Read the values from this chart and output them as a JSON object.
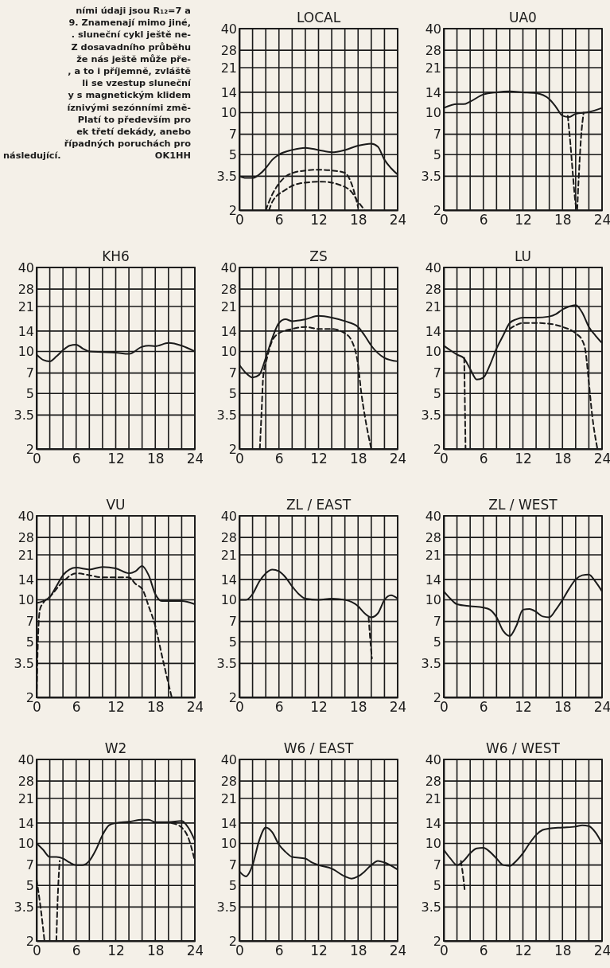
{
  "chart_data": [
    {
      "type": "other",
      "annotations": [
        "ními údaji jsou R₁₂=7 a",
        "9. Znamenají mimo jiné,",
        ". sluneční cykl ještě ne-",
        "Z dosavadního průběhu",
        "že nás ještě může pře-",
        ", a to i příjemně, zvláště",
        "li se vzestup sluneční",
        "y s magnetickým klidem",
        "íznivými sezónními změ-",
        "Platí to především pro",
        "ek třetí dekády, anebo",
        "řípadných poruchách pro",
        "následující.",
        "OK1HH"
      ]
    },
    {
      "type": "line",
      "title": "LOCAL",
      "xlim": [
        0,
        24
      ],
      "xticks": [
        0,
        {
          "value": 2,
          "label": null
        },
        {
          "value": 4,
          "label": null
        },
        6,
        {
          "value": 8,
          "label": null
        },
        {
          "value": 10,
          "label": null
        },
        12,
        {
          "value": 14,
          "label": null
        },
        {
          "value": 16,
          "label": null
        },
        18,
        {
          "value": 20,
          "label": null
        },
        {
          "value": 22,
          "label": null
        },
        24
      ],
      "ylim": [
        2,
        40
      ],
      "yticks": [
        2,
        3.5,
        5,
        7,
        10,
        14,
        21,
        28,
        40
      ],
      "log": true,
      "grid": true,
      "series": [
        {
          "color": "#1a1a1a",
          "line_style": "solid",
          "x": [
            0,
            1,
            2,
            3,
            4,
            5,
            6,
            8,
            10,
            12,
            14,
            16,
            18,
            20,
            21,
            22,
            23,
            24
          ],
          "values": [
            3.5,
            3.4,
            3.4,
            3.6,
            4.0,
            4.6,
            5.0,
            5.4,
            5.6,
            5.4,
            5.2,
            5.4,
            5.8,
            6.0,
            5.7,
            4.6,
            4.0,
            3.6
          ]
        },
        {
          "color": "#1a1a1a",
          "line_style": "dashed",
          "x": [
            4,
            5,
            6,
            7.5,
            10,
            12,
            14,
            16,
            17,
            18
          ],
          "values": [
            2,
            2.6,
            3.1,
            3.6,
            3.85,
            3.9,
            3.85,
            3.7,
            3.1,
            2.1
          ]
        },
        {
          "color": "#1a1a1a",
          "line_style": "dashed",
          "x": [
            4.5,
            5,
            7,
            9,
            12.5,
            15.5,
            17,
            18,
            19
          ],
          "values": [
            2,
            2.3,
            2.8,
            3.1,
            3.2,
            3.0,
            2.7,
            2.3,
            2
          ]
        }
      ]
    },
    {
      "type": "line",
      "title": "UA0",
      "xlim": [
        0,
        24
      ],
      "xticks": [
        0,
        {
          "value": 2,
          "label": null
        },
        {
          "value": 4,
          "label": null
        },
        6,
        {
          "value": 8,
          "label": null
        },
        {
          "value": 10,
          "label": null
        },
        12,
        {
          "value": 14,
          "label": null
        },
        {
          "value": 16,
          "label": null
        },
        18,
        {
          "value": 20,
          "label": null
        },
        {
          "value": 22,
          "label": null
        },
        24
      ],
      "ylim": [
        2,
        40
      ],
      "yticks": [
        2,
        3.5,
        5,
        7,
        10,
        14,
        21,
        28,
        40
      ],
      "log": true,
      "grid": true,
      "series": [
        {
          "color": "#1a1a1a",
          "line_style": "solid",
          "x": [
            0,
            2,
            3,
            4,
            6,
            8,
            10,
            12,
            14,
            16,
            17,
            18,
            19,
            20,
            22,
            24
          ],
          "values": [
            10.8,
            11.5,
            11.5,
            12,
            13.5,
            14,
            14.2,
            14,
            13.8,
            12.5,
            11,
            9.5,
            9.3,
            9.8,
            10.1,
            10.8
          ]
        },
        {
          "color": "#1a1a1a",
          "line_style": "dashed",
          "x": [
            18.8,
            19.2,
            19.6,
            20,
            20.2,
            20.4,
            20.8,
            21.2
          ],
          "values": [
            9.5,
            6,
            3.5,
            2.2,
            2,
            3,
            6.5,
            10
          ]
        }
      ]
    },
    {
      "type": "line",
      "title": "KH6",
      "xlim": [
        0,
        24
      ],
      "xticks": [
        0,
        {
          "value": 2,
          "label": null
        },
        {
          "value": 4,
          "label": null
        },
        6,
        {
          "value": 8,
          "label": null
        },
        {
          "value": 10,
          "label": null
        },
        12,
        {
          "value": 14,
          "label": null
        },
        {
          "value": 16,
          "label": null
        },
        18,
        {
          "value": 20,
          "label": null
        },
        {
          "value": 22,
          "label": null
        },
        24
      ],
      "ylim": [
        2,
        40
      ],
      "yticks": [
        2,
        3.5,
        5,
        7,
        10,
        14,
        21,
        28,
        40
      ],
      "log": true,
      "grid": true,
      "series": [
        {
          "color": "#1a1a1a",
          "line_style": "solid",
          "x": [
            0,
            1,
            2,
            3,
            4,
            5,
            6,
            7,
            8,
            10,
            12,
            14,
            16,
            17,
            18,
            20,
            22,
            24
          ],
          "values": [
            9.5,
            8.7,
            8.5,
            9.2,
            10.2,
            11,
            11.2,
            10.5,
            10,
            9.9,
            9.8,
            9.6,
            10.8,
            11,
            10.9,
            11.5,
            11,
            10
          ]
        }
      ]
    },
    {
      "type": "line",
      "title": "ZS",
      "xlim": [
        0,
        24
      ],
      "xticks": [
        0,
        {
          "value": 2,
          "label": null
        },
        {
          "value": 4,
          "label": null
        },
        6,
        {
          "value": 8,
          "label": null
        },
        {
          "value": 10,
          "label": null
        },
        12,
        {
          "value": 14,
          "label": null
        },
        {
          "value": 16,
          "label": null
        },
        18,
        {
          "value": 20,
          "label": null
        },
        {
          "value": 22,
          "label": null
        },
        24
      ],
      "ylim": [
        2,
        40
      ],
      "yticks": [
        2,
        3.5,
        5,
        7,
        10,
        14,
        21,
        28,
        40
      ],
      "log": true,
      "grid": true,
      "series": [
        {
          "color": "#1a1a1a",
          "line_style": "solid",
          "x": [
            0,
            1,
            2,
            3,
            4,
            5,
            6,
            7,
            8,
            10,
            12,
            14,
            16,
            18,
            19,
            20,
            22,
            24
          ],
          "values": [
            8,
            7,
            6.5,
            6.8,
            9,
            12.5,
            16,
            17,
            16.5,
            17,
            18,
            17.5,
            16.5,
            15,
            13,
            11,
            9,
            8.5
          ]
        },
        {
          "color": "#1a1a1a",
          "line_style": "dashed",
          "x": [
            3.1,
            3.4,
            3.6,
            4.2,
            5,
            6,
            8,
            10,
            12,
            14,
            16,
            17,
            18,
            18.5,
            19,
            20
          ],
          "values": [
            2,
            4,
            6.5,
            9,
            12,
            13.5,
            14.5,
            15,
            14.5,
            14.5,
            13.5,
            12,
            8,
            5,
            3.5,
            2
          ]
        }
      ]
    },
    {
      "type": "line",
      "title": "LU",
      "xlim": [
        0,
        24
      ],
      "xticks": [
        0,
        {
          "value": 2,
          "label": null
        },
        {
          "value": 4,
          "label": null
        },
        6,
        {
          "value": 8,
          "label": null
        },
        {
          "value": 10,
          "label": null
        },
        12,
        {
          "value": 14,
          "label": null
        },
        {
          "value": 16,
          "label": null
        },
        18,
        {
          "value": 20,
          "label": null
        },
        {
          "value": 22,
          "label": null
        },
        24
      ],
      "ylim": [
        2,
        40
      ],
      "yticks": [
        2,
        3.5,
        5,
        7,
        10,
        14,
        21,
        28,
        40
      ],
      "log": true,
      "grid": true,
      "series": [
        {
          "color": "#1a1a1a",
          "line_style": "solid",
          "x": [
            0,
            1,
            2,
            3,
            4,
            5,
            6,
            7,
            8,
            9,
            10,
            11,
            12,
            14,
            16,
            17,
            18,
            19,
            20,
            21,
            22,
            23,
            24
          ],
          "values": [
            11,
            10.2,
            9.5,
            9,
            7.5,
            6.3,
            6.5,
            8,
            10.5,
            13,
            16,
            17,
            17.5,
            17.5,
            17.8,
            18.5,
            20,
            21,
            21.5,
            19,
            15,
            13,
            11.5
          ]
        },
        {
          "color": "#1a1a1a",
          "line_style": "dashed",
          "x": [
            3.1,
            3.3,
            6,
            10,
            11,
            12,
            14,
            16,
            18,
            20,
            21,
            21.5,
            22,
            22.5,
            23.3
          ],
          "values": [
            9,
            2,
            null,
            14.5,
            15.5,
            16,
            16,
            15.8,
            15,
            13.5,
            12,
            10,
            6,
            3.5,
            2
          ]
        }
      ]
    },
    {
      "type": "line",
      "title": "VU",
      "xlim": [
        0,
        24
      ],
      "xticks": [
        0,
        {
          "value": 2,
          "label": null
        },
        {
          "value": 4,
          "label": null
        },
        6,
        {
          "value": 8,
          "label": null
        },
        {
          "value": 10,
          "label": null
        },
        12,
        {
          "value": 14,
          "label": null
        },
        {
          "value": 16,
          "label": null
        },
        18,
        {
          "value": 20,
          "label": null
        },
        {
          "value": 22,
          "label": null
        },
        24
      ],
      "ylim": [
        2,
        40
      ],
      "yticks": [
        2,
        3.5,
        5,
        7,
        10,
        14,
        21,
        28,
        40
      ],
      "log": true,
      "grid": true,
      "series": [
        {
          "color": "#1a1a1a",
          "line_style": "solid",
          "x": [
            0,
            1,
            2,
            3,
            4,
            5,
            6,
            8,
            10,
            12,
            14,
            15,
            16,
            17,
            18,
            19,
            20,
            22,
            24
          ],
          "values": [
            9.5,
            9.8,
            10.5,
            12.5,
            15,
            16.5,
            17,
            16.5,
            17.2,
            16.8,
            15.5,
            16,
            17.5,
            15,
            11,
            9.8,
            9.8,
            9.8,
            9.3
          ]
        },
        {
          "color": "#1a1a1a",
          "line_style": "dashed",
          "x": [
            0,
            0.2,
            0.5,
            1,
            2,
            4,
            6,
            8,
            10,
            12,
            14,
            15,
            16,
            17,
            18,
            19,
            20,
            20.5
          ],
          "values": [
            2,
            5,
            8.5,
            9.5,
            10.5,
            13.5,
            15.5,
            15,
            14.5,
            14.5,
            14.5,
            13,
            12,
            9,
            6.5,
            4,
            2.5,
            2
          ]
        }
      ]
    },
    {
      "type": "line",
      "title": "ZL / EAST",
      "xlim": [
        0,
        24
      ],
      "xticks": [
        0,
        {
          "value": 2,
          "label": null
        },
        {
          "value": 4,
          "label": null
        },
        6,
        {
          "value": 8,
          "label": null
        },
        {
          "value": 10,
          "label": null
        },
        12,
        {
          "value": 14,
          "label": null
        },
        {
          "value": 16,
          "label": null
        },
        18,
        {
          "value": 20,
          "label": null
        },
        {
          "value": 22,
          "label": null
        },
        24
      ],
      "ylim": [
        2,
        40
      ],
      "yticks": [
        2,
        3.5,
        5,
        7,
        10,
        14,
        21,
        28,
        40
      ],
      "log": true,
      "grid": true,
      "series": [
        {
          "color": "#1a1a1a",
          "line_style": "solid",
          "x": [
            0,
            1,
            2,
            3,
            4,
            5,
            6,
            7,
            8,
            9,
            10,
            12,
            14,
            16,
            18,
            19,
            20,
            21,
            22,
            23,
            24
          ],
          "values": [
            10,
            10,
            11,
            13.5,
            15.5,
            16.5,
            16,
            14.5,
            12.5,
            11,
            10.2,
            10,
            10.2,
            10,
            9,
            8,
            7.5,
            8,
            10,
            10.8,
            10.2
          ]
        },
        {
          "color": "#1a1a1a",
          "line_style": "dashed",
          "x": [
            19.6,
            19.8,
            20.1
          ],
          "values": [
            7.5,
            5.5,
            3.8
          ]
        }
      ]
    },
    {
      "type": "line",
      "title": "ZL / WEST",
      "xlim": [
        0,
        24
      ],
      "xticks": [
        0,
        {
          "value": 2,
          "label": null
        },
        {
          "value": 4,
          "label": null
        },
        6,
        {
          "value": 8,
          "label": null
        },
        {
          "value": 10,
          "label": null
        },
        12,
        {
          "value": 14,
          "label": null
        },
        {
          "value": 16,
          "label": null
        },
        18,
        {
          "value": 20,
          "label": null
        },
        {
          "value": 22,
          "label": null
        },
        24
      ],
      "ylim": [
        2,
        40
      ],
      "yticks": [
        2,
        3.5,
        5,
        7,
        10,
        14,
        21,
        28,
        40
      ],
      "log": true,
      "grid": true,
      "series": [
        {
          "color": "#1a1a1a",
          "line_style": "solid",
          "x": [
            0,
            1,
            2,
            4,
            6,
            7,
            8,
            9,
            10,
            11,
            12,
            13,
            14,
            15,
            16,
            17,
            18,
            19,
            20,
            21,
            22,
            23,
            24
          ],
          "values": [
            11.5,
            10.2,
            9.3,
            9,
            8.8,
            8.5,
            7.5,
            6,
            5.5,
            6.5,
            8.5,
            8.6,
            8.2,
            7.6,
            7.5,
            8.5,
            10,
            12,
            14,
            15,
            15.2,
            13.5,
            11.5
          ]
        }
      ]
    },
    {
      "type": "line",
      "title": "W2",
      "xlim": [
        0,
        24
      ],
      "xticks": [
        0,
        {
          "value": 2,
          "label": null
        },
        {
          "value": 4,
          "label": null
        },
        6,
        {
          "value": 8,
          "label": null
        },
        {
          "value": 10,
          "label": null
        },
        12,
        {
          "value": 14,
          "label": null
        },
        {
          "value": 16,
          "label": null
        },
        18,
        {
          "value": 20,
          "label": null
        },
        {
          "value": 22,
          "label": null
        },
        24
      ],
      "ylim": [
        2,
        40
      ],
      "yticks": [
        2,
        3.5,
        5,
        7,
        10,
        14,
        21,
        28,
        40
      ],
      "log": true,
      "grid": true,
      "series": [
        {
          "color": "#1a1a1a",
          "line_style": "solid",
          "x": [
            0,
            1,
            2,
            3,
            4,
            5,
            6,
            7,
            8,
            9,
            10,
            11,
            12,
            14,
            16,
            17,
            18,
            20,
            22,
            23,
            24
          ],
          "values": [
            10,
            9,
            8,
            8,
            7.8,
            7.3,
            7,
            7,
            7.5,
            9,
            11.5,
            13.5,
            14,
            14.3,
            14.8,
            14.8,
            14.2,
            14.2,
            14.5,
            13,
            10.5
          ]
        },
        {
          "color": "#1a1a1a",
          "line_style": "dashed",
          "x": [
            0,
            0.6,
            1.2,
            2,
            3,
            3.2,
            3.5,
            12,
            20.5,
            22,
            23,
            24
          ],
          "values": [
            5.5,
            3.5,
            2,
            null,
            2,
            4,
            7.5,
            null,
            14,
            13,
            11,
            7.5
          ]
        }
      ]
    },
    {
      "type": "line",
      "title": "W6 / EAST",
      "xlim": [
        0,
        24
      ],
      "xticks": [
        0,
        {
          "value": 2,
          "label": null
        },
        {
          "value": 4,
          "label": null
        },
        6,
        {
          "value": 8,
          "label": null
        },
        {
          "value": 10,
          "label": null
        },
        12,
        {
          "value": 14,
          "label": null
        },
        {
          "value": 16,
          "label": null
        },
        18,
        {
          "value": 20,
          "label": null
        },
        {
          "value": 22,
          "label": null
        },
        24
      ],
      "ylim": [
        2,
        40
      ],
      "yticks": [
        2,
        3.5,
        5,
        7,
        10,
        14,
        21,
        28,
        40
      ],
      "log": true,
      "grid": true,
      "series": [
        {
          "color": "#1a1a1a",
          "line_style": "solid",
          "x": [
            0,
            1,
            2,
            3,
            4,
            5,
            6,
            7,
            8,
            10,
            11,
            12,
            14,
            16,
            17,
            18,
            19,
            20,
            21,
            22,
            24
          ],
          "values": [
            6.3,
            5.8,
            7,
            10.5,
            13,
            12,
            9.8,
            8.7,
            8,
            7.8,
            7.3,
            7,
            6.6,
            5.8,
            5.6,
            5.8,
            6.3,
            7,
            7.5,
            7.3,
            6.5
          ]
        }
      ]
    },
    {
      "type": "line",
      "title": "W6 / WEST",
      "xlim": [
        0,
        24
      ],
      "xticks": [
        0,
        {
          "value": 2,
          "label": null
        },
        {
          "value": 4,
          "label": null
        },
        6,
        {
          "value": 8,
          "label": null
        },
        {
          "value": 10,
          "label": null
        },
        12,
        {
          "value": 14,
          "label": null
        },
        {
          "value": 16,
          "label": null
        },
        18,
        {
          "value": 20,
          "label": null
        },
        {
          "value": 22,
          "label": null
        },
        24
      ],
      "ylim": [
        2,
        40
      ],
      "yticks": [
        2,
        3.5,
        5,
        7,
        10,
        14,
        21,
        28,
        40
      ],
      "log": true,
      "grid": true,
      "series": [
        {
          "color": "#1a1a1a",
          "line_style": "solid",
          "x": [
            0,
            1,
            2,
            3,
            4,
            5,
            6,
            7,
            8,
            9,
            10,
            11,
            12,
            13,
            14,
            15,
            16,
            18,
            20,
            21,
            22,
            23,
            24
          ],
          "values": [
            9,
            7.8,
            7,
            7.5,
            8.5,
            9.2,
            9.3,
            8.7,
            7.8,
            7,
            6.9,
            7.5,
            8.5,
            10,
            11.5,
            12.5,
            12.8,
            13,
            13.2,
            13.5,
            13.3,
            12,
            10
          ]
        },
        {
          "color": "#1a1a1a",
          "line_style": "dashed",
          "x": [
            2.6,
            3,
            3.2
          ],
          "values": [
            7.5,
            5.5,
            4.5
          ]
        }
      ]
    }
  ]
}
